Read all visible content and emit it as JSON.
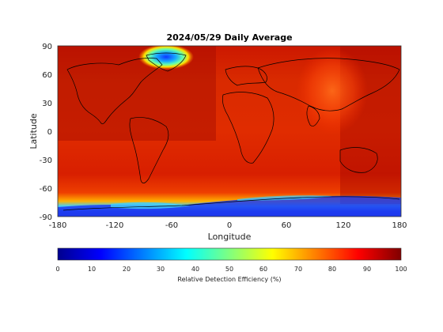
{
  "title": "2024/05/29 Daily Average",
  "map": {
    "x_label": "Longitude",
    "y_label": "Latitude",
    "x_ticks": [
      "-180",
      "-120",
      "-60",
      "0",
      "60",
      "120",
      "180"
    ],
    "y_ticks": [
      "90",
      "60",
      "30",
      "0",
      "-30",
      "-60",
      "-90"
    ],
    "x_range": [
      -180,
      180
    ],
    "y_range": [
      -90,
      90
    ],
    "projection": "equirectangular",
    "coastlines": true
  },
  "colorbar": {
    "label": "Relative Detection Efficiency (%)",
    "ticks": [
      "0",
      "10",
      "20",
      "30",
      "40",
      "50",
      "60",
      "70",
      "80",
      "90",
      "100"
    ],
    "range": [
      0,
      100
    ],
    "colormap": "jet",
    "orientation": "horizontal"
  },
  "colors": {
    "high_efficiency": "#d31c00",
    "low_efficiency": "#1f3cf0",
    "coastline": "#000000"
  }
}
